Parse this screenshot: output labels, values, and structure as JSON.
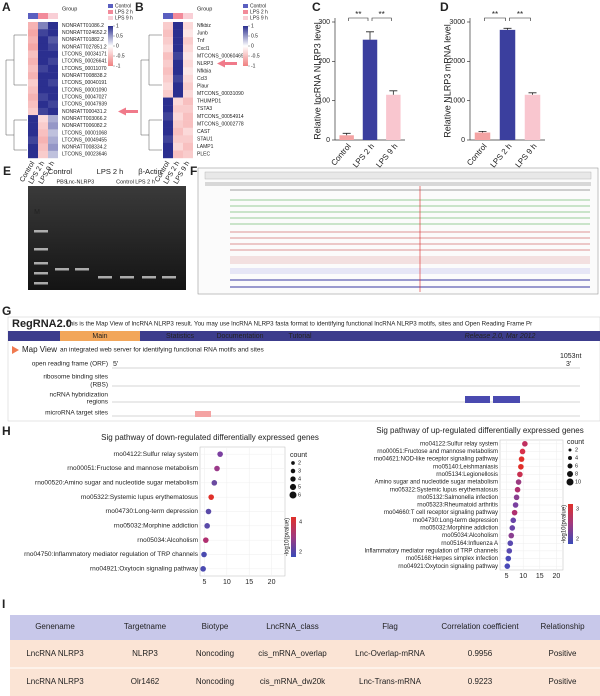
{
  "letters": [
    "A",
    "B",
    "C",
    "D",
    "E",
    "F",
    "G",
    "H",
    "I"
  ],
  "heatmaps": [
    {
      "group_title": "Group",
      "groups": [
        "Control",
        "LPS 2 h",
        "LPS 9 h"
      ],
      "group_colors": [
        "#5a5fc0",
        "#f28a9a",
        "#f9cfd6"
      ],
      "scale": [
        1,
        0.5,
        0,
        -0.5,
        -1
      ],
      "columns": [
        "Control",
        "LPS 2 h",
        "LPS 9 h"
      ],
      "rows": [
        "NONRATT01086.2",
        "NONRATT024652.2",
        "NONRATT01882.2",
        "NONRATT027851.2",
        "LTCONS_00034171",
        "LTCONS_00026641",
        "LTCONS_00011070",
        "NONRATT008838.2",
        "LTCONS_00040191",
        "LTCONS_00001090",
        "LTCONS_00047027",
        "LTCONS_00047939",
        "NONRATT000431.2",
        "NONRATT003066.2",
        "NONRATT006082.2",
        "LTCONS_00001068",
        "LTCONS_00049455",
        "NONRATT008334.2",
        "LTCONS_00023646"
      ],
      "values": [
        [
          -0.6,
          0.6,
          1
        ],
        [
          -0.7,
          0.9,
          1
        ],
        [
          -0.6,
          1,
          0.8
        ],
        [
          -0.7,
          1,
          0.9
        ],
        [
          -0.5,
          1,
          1
        ],
        [
          -0.6,
          1,
          0.9
        ],
        [
          -0.5,
          0.9,
          1
        ],
        [
          -0.6,
          1,
          1
        ],
        [
          -0.4,
          1,
          0.9
        ],
        [
          -0.5,
          1,
          1
        ],
        [
          -0.6,
          0.9,
          1
        ],
        [
          -0.5,
          1,
          0.9
        ],
        [
          -0.4,
          0.9,
          1
        ],
        [
          1,
          -0.3,
          0.4
        ],
        [
          1,
          -0.4,
          0.5
        ],
        [
          1,
          -0.5,
          0.3
        ],
        [
          0.9,
          -0.6,
          0.4
        ],
        [
          1,
          -0.5,
          0.5
        ],
        [
          1,
          -0.4,
          0.3
        ]
      ]
    },
    {
      "group_title": "Group",
      "groups": [
        "Control",
        "LPS 2 h",
        "LPS 9 h"
      ],
      "group_colors": [
        "#5a5fc0",
        "#f28a9a",
        "#f9cfd6"
      ],
      "scale": [
        1,
        0.5,
        0,
        -0.5,
        -1
      ],
      "columns": [
        "Control",
        "LPS 2 h",
        "LPS 9 h"
      ],
      "rows": [
        "Nfkbiz",
        "Junb",
        "Tnf",
        "Cxcl1",
        "MTCONS_00060469",
        "NLRP3",
        "Nfkbia",
        "Ccl3",
        "Plaur",
        "MTCONS_00031090",
        "THUMPD1",
        "TSTA3",
        "MTCONS_00054914",
        "MTCONS_00002778",
        "CAST",
        "STAU1",
        "LAMP1",
        "PLEC"
      ],
      "values": [
        [
          -0.4,
          1,
          -0.3
        ],
        [
          -0.5,
          1,
          -0.2
        ],
        [
          -0.4,
          1,
          -0.4
        ],
        [
          -0.3,
          1,
          -0.3
        ],
        [
          -0.5,
          0.9,
          -0.2
        ],
        [
          -0.4,
          1,
          -0.3
        ],
        [
          -0.5,
          1,
          -0.2
        ],
        [
          -0.4,
          0.9,
          -0.3
        ],
        [
          -0.3,
          1,
          -0.4
        ],
        [
          -0.4,
          1,
          -0.3
        ],
        [
          1,
          -0.3,
          -0.5
        ],
        [
          1,
          -0.4,
          -0.4
        ],
        [
          0.9,
          -0.3,
          -0.5
        ],
        [
          1,
          -0.4,
          -0.5
        ],
        [
          1,
          -0.5,
          -0.3
        ],
        [
          0.9,
          -0.4,
          -0.4
        ],
        [
          1,
          -0.3,
          -0.5
        ],
        [
          1,
          -0.5,
          -0.4
        ]
      ]
    }
  ],
  "chart_data": [
    {
      "type": "bar",
      "ylabel": "Relative lncRNA NLRP3 level",
      "categories": [
        "Control",
        "LPS 2 h",
        "LPS 9 h"
      ],
      "values": [
        12,
        255,
        115
      ],
      "errors": [
        5,
        20,
        10
      ],
      "colors": [
        "#f4a3a3",
        "#3b3f9e",
        "#f9c6cf"
      ],
      "ylim": [
        0,
        300
      ],
      "yticks": [
        0,
        100,
        200,
        300
      ],
      "annotations": [
        "**",
        "**"
      ]
    },
    {
      "type": "bar",
      "ylabel": "Relative NLRP3 mRNA level",
      "categories": [
        "Control",
        "LPS 2 h",
        "LPS 9 h"
      ],
      "values": [
        190,
        2800,
        1150
      ],
      "errors": [
        30,
        40,
        50
      ],
      "colors": [
        "#f4a3a3",
        "#3b3f9e",
        "#f9c6cf"
      ],
      "ylim": [
        0,
        3000
      ],
      "yticks": [
        0,
        1000,
        2000,
        3000
      ],
      "annotations": [
        "**",
        "**"
      ]
    },
    {
      "type": "scatter",
      "title": "Sig pathway of down-regulated differentially expressed genes",
      "categories": [
        "rno04122:Sulfur relay system",
        "rno00051:Fructose and mannose metabolism",
        "rno00520:Amino sugar and nucleotide sugar metabolism",
        "rno05322:Systemic lupus erythematosus",
        "rno04730:Long-term depression",
        "rno05032:Morphine addiction",
        "rno05034:Alcoholism",
        "rno04750:Inflammatory mediator regulation of TRP channels",
        "rno04921:Oxytocin signaling pathway"
      ],
      "values": [
        8.5,
        7.8,
        7.2,
        6.5,
        5.9,
        5.6,
        5.3,
        4.9,
        4.7
      ],
      "colors": [
        "#7b3fa0",
        "#9b3a8a",
        "#6a4aa0",
        "#e0302a",
        "#5a4aa8",
        "#5a4aa8",
        "#b03070",
        "#4a4ab0",
        "#4a4ab0"
      ],
      "xlim": [
        4,
        23
      ],
      "xticks": [
        5,
        10,
        15,
        20
      ],
      "size_title": "count",
      "size_legend": [
        2,
        3,
        4,
        5,
        6
      ],
      "color_title": "-log10(pvalue)",
      "color_ticks": [
        2,
        4
      ]
    },
    {
      "type": "scatter",
      "title": "Sig pathway of up-regulated differentially expressed genes",
      "categories": [
        "rno04122:Sulfur relay system",
        "rno00051:Fructose and mannose metabolism",
        "rno04621:NOD-like receptor signaling pathway",
        "rno05140:Leishmaniasis",
        "rno05134:Legionellosis",
        "Amino sugar and nucleotide sugar metabolism",
        "rno05322:Systemic lupus erythematosus",
        "rno05132:Salmonella infection",
        "rno05323:Rheumatoid arthritis",
        "rno04660:T cell receptor signaling pathway",
        "rno04730:Long-term depression",
        "rno05032:Morphine addiction",
        "rno05034:Alcoholism",
        "rno05164:Influenza A",
        "Inflammatory mediator regulation of TRP channels",
        "rno05168:Herpes simplex infection",
        "rno04921:Oxytocin signaling pathway"
      ],
      "values": [
        10.5,
        9.8,
        9.5,
        9.3,
        9.0,
        8.6,
        8.3,
        8.0,
        7.7,
        7.4,
        7.0,
        6.7,
        6.4,
        6.1,
        5.8,
        5.5,
        5.2
      ],
      "colors": [
        "#c03060",
        "#d8304a",
        "#e0302a",
        "#e0302a",
        "#c83050",
        "#9a3a80",
        "#b03070",
        "#8a3f90",
        "#7a40a0",
        "#b03070",
        "#6a45a8",
        "#6a45a8",
        "#8a3f90",
        "#5a4ab0",
        "#5a4ab0",
        "#4a4ab8",
        "#4a4ab8"
      ],
      "xlim": [
        3,
        22
      ],
      "xticks": [
        5,
        10,
        15,
        20
      ],
      "size_title": "count",
      "size_legend": [
        2,
        4,
        6,
        8,
        10
      ],
      "color_title": "-log10(pvalue)",
      "color_ticks": [
        2,
        3
      ]
    }
  ],
  "gel": {
    "top": [
      "Control",
      "LPS 2 h",
      "β-Actin"
    ],
    "marker": "M",
    "lanes": [
      "PBS",
      "Lnc-NLRP3",
      "Control",
      "LPS 2 h"
    ]
  },
  "regrna": {
    "logo": "RegRNA2.0",
    "intro": "This is the Map View of lncRNA NLRP3 result. You may use lncRNA NLRP3 fasta format to identifying functional lncRNA NLRP3 motifs, sites and Open Reading Frame Pr",
    "nav": [
      "Main",
      "Statistics",
      "Documentation",
      "Tutorial"
    ],
    "release": "Release 2.0, Mar 2012",
    "view": "Map View",
    "tagline": "an integrated web server for identifying functional RNA motifs and sites",
    "five": "5'",
    "three": "3'",
    "length": "1053nt",
    "tracks": [
      "open reading frame (ORF)",
      "ribosome binding sites",
      "(RBS)",
      "ncRNA hybridization",
      "regions",
      "microRNA target sites"
    ]
  },
  "table": {
    "header": [
      "Genename",
      "Targetname",
      "Biotype",
      "LncRNA_class",
      "Flag",
      "Correlation coefficient",
      "Relationship"
    ],
    "rows": [
      [
        "LncRNA NLRP3",
        "NLRP3",
        "Noncoding",
        "cis_mRNA_overlap",
        "Lnc-Overlap-mRNA",
        "0.9956",
        "Positive"
      ],
      [
        "LncRNA NLRP3",
        "Olr1462",
        "Noncoding",
        "cis_mRNA_dw20k",
        "Lnc-Trans-mRNA",
        "0.9223",
        "Positive"
      ]
    ]
  }
}
